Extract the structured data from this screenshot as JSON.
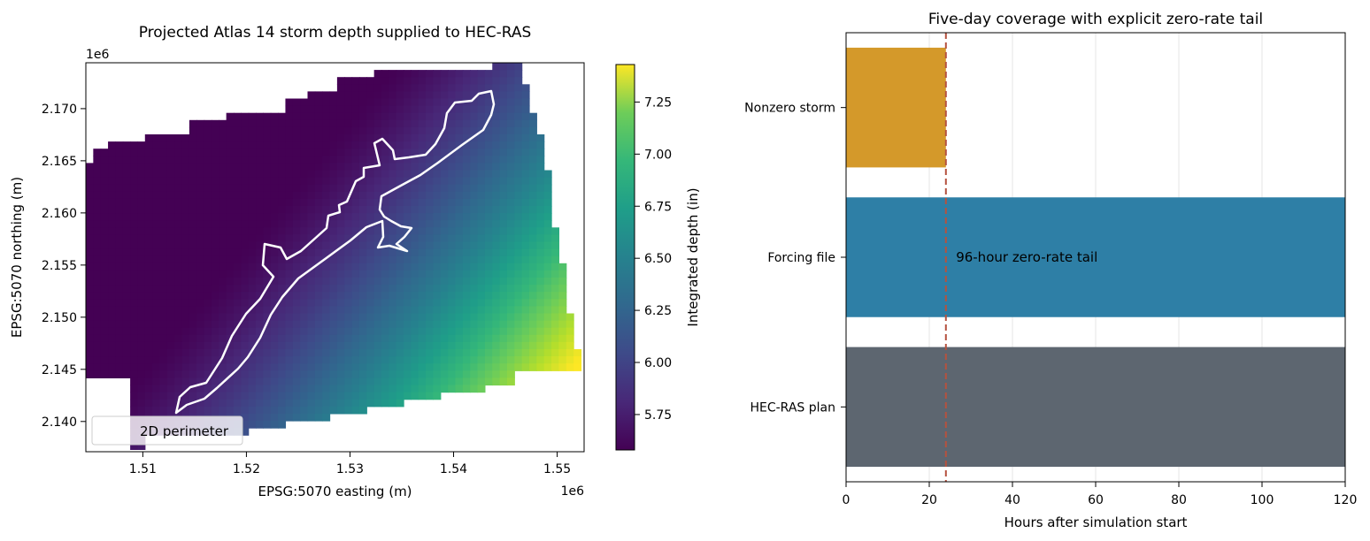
{
  "chart_data": [
    {
      "type": "heatmap",
      "title": "Projected Atlas 14 storm depth supplied to HEC-RAS",
      "xlabel": "EPSG:5070 easting (m)",
      "ylabel": "EPSG:5070 northing (m)",
      "x_offset_label": "1e6",
      "y_offset_label": "1e6",
      "xlim": [
        1.5045,
        1.5526
      ],
      "ylim": [
        2.1371,
        2.1744
      ],
      "x_ticks": [
        1.51,
        1.52,
        1.53,
        1.54,
        1.55
      ],
      "x_tick_labels": [
        "1.51",
        "1.52",
        "1.53",
        "1.54",
        "1.55"
      ],
      "y_ticks": [
        2.14,
        2.145,
        2.15,
        2.155,
        2.16,
        2.165,
        2.17
      ],
      "y_tick_labels": [
        "2.140",
        "2.145",
        "2.150",
        "2.155",
        "2.160",
        "2.165",
        "2.170"
      ],
      "colormap": "viridis",
      "colorbar": {
        "label": "Integrated depth (in)",
        "range": [
          5.58,
          7.43
        ],
        "ticks": [
          5.75,
          6.0,
          6.25,
          6.5,
          6.75,
          7.0,
          7.25
        ],
        "tick_labels": [
          "5.75",
          "6.00",
          "6.25",
          "6.50",
          "6.75",
          "7.00",
          "7.25"
        ]
      },
      "depth_field": {
        "min_location": [
          1.528,
          2.1665
        ],
        "min_value": 5.58,
        "max_location": [
          1.5526,
          2.1465
        ],
        "max_value": 7.43
      },
      "legend": {
        "entries": [
          "2D perimeter"
        ],
        "location": "lower-left"
      },
      "perimeter_color": "#ffffff"
    },
    {
      "type": "bar",
      "orientation": "horizontal",
      "title": "Five-day coverage with explicit zero-rate tail",
      "xlabel": "Hours after simulation start",
      "ylabel": "",
      "categories": [
        "Nonzero storm",
        "Forcing file",
        "HEC-RAS plan"
      ],
      "values": [
        24,
        120,
        120
      ],
      "colors": [
        "#D4992A",
        "#2E7FA6",
        "#5D6670"
      ],
      "xlim": [
        0,
        120
      ],
      "x_ticks": [
        0,
        20,
        40,
        60,
        80,
        100,
        120
      ],
      "x_tick_labels": [
        "0",
        "20",
        "40",
        "60",
        "80",
        "100",
        "120"
      ],
      "grid": "vertical",
      "reference_line": {
        "x": 24,
        "color": "#B5523F",
        "style": "dashed"
      },
      "annotation": {
        "text": "96-hour zero-rate tail",
        "x": 26,
        "category": "Forcing file",
        "color": "#B5523F"
      }
    }
  ]
}
